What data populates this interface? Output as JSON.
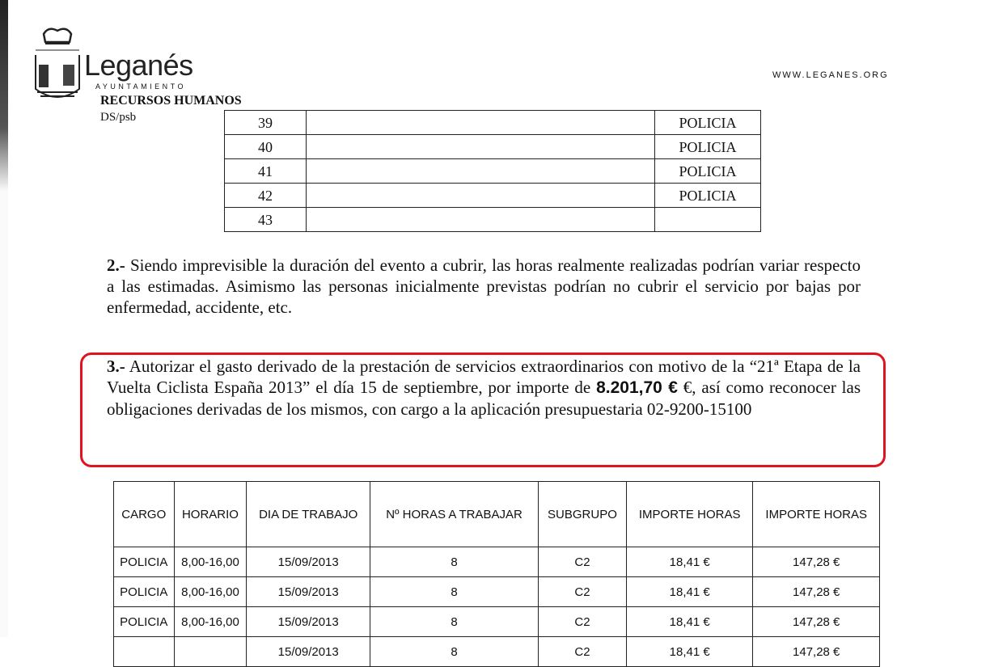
{
  "header": {
    "brand": "Leganés",
    "subtitle": "AYUNTAMIENTO",
    "department": "RECURSOS HUMANOS",
    "reference": "DS/psb",
    "website": "WWW.LEGANES.ORG"
  },
  "list_table": {
    "rows": [
      {
        "num": "39",
        "name": "",
        "cargo": "POLICIA"
      },
      {
        "num": "40",
        "name": "",
        "cargo": "POLICIA"
      },
      {
        "num": "41",
        "name": "",
        "cargo": "POLICIA"
      },
      {
        "num": "42",
        "name": "",
        "cargo": "POLICIA"
      },
      {
        "num": "43",
        "name": "",
        "cargo": ""
      }
    ]
  },
  "paragraph2": {
    "number": "2.-",
    "text": " Siendo imprevisible la duración del evento a cubrir, las horas realmente realizadas podrían variar respecto a las estimadas. Asimismo las personas inicialmente previstas podrían no cubrir el servicio por bajas por enfermedad, accidente, etc."
  },
  "paragraph3": {
    "number": "3.-",
    "text_a": " Autorizar el gasto derivado de la prestación de servicios extraordinarios con motivo de la “21ª Etapa de la Vuelta Ciclista España 2013” el día 15 de septiembre, por importe de ",
    "amount": "8.201,70 €",
    "text_b": " €, así como reconocer las obligaciones derivadas de los mismos, con cargo a la aplicación presupuestaria 02-9200-15100",
    "highlight_color": "#e0141e"
  },
  "cost_table": {
    "headers": [
      "CARGO",
      "HORARIO",
      "DIA DE TRABAJO",
      "Nº HORAS A TRABAJAR",
      "SUBGRUPO",
      "IMPORTE HORAS",
      "IMPORTE HORAS"
    ],
    "rows": [
      [
        "POLICIA",
        "8,00-16,00",
        "15/09/2013",
        "8",
        "C2",
        "18,41 €",
        "147,28 €"
      ],
      [
        "POLICIA",
        "8,00-16,00",
        "15/09/2013",
        "8",
        "C2",
        "18,41 €",
        "147,28 €"
      ],
      [
        "POLICIA",
        "8,00-16,00",
        "15/09/2013",
        "8",
        "C2",
        "18,41 €",
        "147,28 €"
      ],
      [
        "",
        "",
        "15/09/2013",
        "8",
        "C2",
        "18,41 €",
        "147,28 €"
      ]
    ]
  }
}
